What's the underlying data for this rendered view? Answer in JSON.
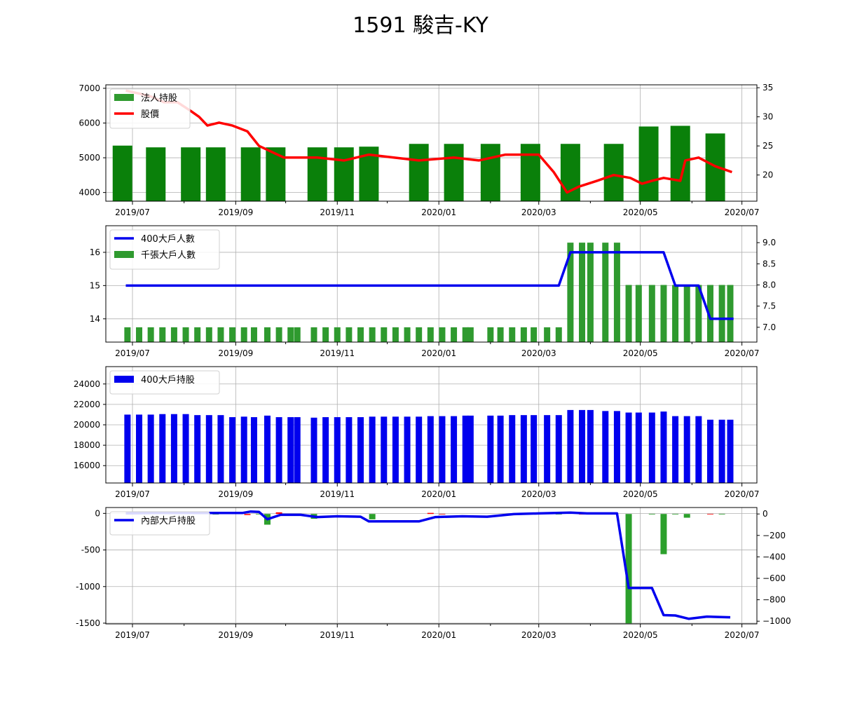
{
  "title": "1591 駿吉-KY",
  "x_tick_labels": [
    "2019/07",
    "2019/09",
    "2019/11",
    "2020/01",
    "2020/03",
    "2020/05",
    "2020/07"
  ],
  "chart_data": [
    {
      "type": "bar+line",
      "legend": [
        "法人持股",
        "股價"
      ],
      "y_left": {
        "range": [
          3750,
          7100
        ],
        "ticks": [
          4000,
          5000,
          6000,
          7000
        ],
        "tick_labels": [
          "4000",
          "5000",
          "6000",
          "7000"
        ]
      },
      "y_right": {
        "range": [
          15.5,
          35.5
        ],
        "ticks": [
          20,
          25,
          30,
          35
        ],
        "tick_labels": [
          "20",
          "25",
          "30",
          "35"
        ]
      },
      "bars": {
        "series_name": "法人持股",
        "x": [
          "2019-06-25",
          "2019-07-15",
          "2019-08-05",
          "2019-08-20",
          "2019-09-10",
          "2019-09-25",
          "2019-10-20",
          "2019-11-05",
          "2019-11-20",
          "2019-12-20",
          "2020-01-10",
          "2020-02-01",
          "2020-02-25",
          "2020-03-20",
          "2020-04-15",
          "2020-05-06",
          "2020-05-25",
          "2020-06-15"
        ],
        "values": [
          5350,
          5300,
          5300,
          5300,
          5300,
          5300,
          5300,
          5300,
          5320,
          5400,
          5400,
          5400,
          5400,
          5400,
          5400,
          5900,
          5920,
          5700
        ]
      },
      "line": {
        "series_name": "股價",
        "x": [
          "2019-06-27",
          "2019-07-05",
          "2019-07-12",
          "2019-07-20",
          "2019-07-28",
          "2019-08-05",
          "2019-08-10",
          "2019-08-15",
          "2019-08-22",
          "2019-08-30",
          "2019-09-08",
          "2019-09-15",
          "2019-09-30",
          "2019-10-20",
          "2019-11-05",
          "2019-11-20",
          "2019-12-05",
          "2019-12-20",
          "2020-01-10",
          "2020-01-25",
          "2020-02-10",
          "2020-03-01",
          "2020-03-10",
          "2020-03-18",
          "2020-03-25",
          "2020-04-05",
          "2020-04-15",
          "2020-04-25",
          "2020-05-02",
          "2020-05-08",
          "2020-05-15",
          "2020-05-25",
          "2020-05-28",
          "2020-06-05",
          "2020-06-15",
          "2020-06-20",
          "2020-06-25"
        ],
        "values": [
          34.5,
          34.0,
          33.5,
          32.5,
          32.5,
          31.0,
          30.0,
          28.5,
          29.0,
          28.5,
          27.5,
          25.0,
          23.0,
          23.0,
          22.5,
          23.5,
          23.0,
          22.5,
          23.0,
          22.5,
          23.5,
          23.5,
          20.5,
          17.0,
          18.0,
          19.0,
          20.0,
          19.5,
          18.5,
          19.0,
          19.5,
          19.0,
          22.5,
          23.0,
          21.5,
          21.0,
          20.5
        ]
      }
    },
    {
      "type": "line+bar",
      "legend": [
        "400大戶人數",
        "千張大戶人數"
      ],
      "y_left": {
        "range": [
          13.3,
          16.8
        ],
        "ticks": [
          14,
          15,
          16
        ],
        "tick_labels": [
          "14",
          "15",
          "16"
        ]
      },
      "y_right": {
        "range": [
          6.65,
          9.4
        ],
        "ticks": [
          7.0,
          7.5,
          8.0,
          8.5,
          9.0
        ],
        "tick_labels": [
          "7.0",
          "7.5",
          "8.0",
          "8.5",
          "9.0"
        ]
      },
      "line": {
        "series_name": "400大戶人數",
        "x": [
          "2019-06-27",
          "2020-03-13",
          "2020-03-20",
          "2020-05-15",
          "2020-05-22",
          "2020-06-05",
          "2020-06-12",
          "2020-06-26"
        ],
        "values": [
          15,
          15,
          16,
          16,
          15,
          15,
          14,
          14
        ]
      },
      "bars": {
        "series_name": "千張大戶人數",
        "x": [
          "2019-06-28",
          "2019-07-05",
          "2019-07-12",
          "2019-07-19",
          "2019-07-26",
          "2019-08-02",
          "2019-08-09",
          "2019-08-16",
          "2019-08-23",
          "2019-08-30",
          "2019-09-06",
          "2019-09-12",
          "2019-09-20",
          "2019-09-27",
          "2019-10-04",
          "2019-10-08",
          "2019-10-18",
          "2019-10-25",
          "2019-11-01",
          "2019-11-08",
          "2019-11-15",
          "2019-11-22",
          "2019-11-29",
          "2019-12-06",
          "2019-12-13",
          "2019-12-20",
          "2019-12-27",
          "2020-01-03",
          "2020-01-10",
          "2020-01-17",
          "2020-01-20",
          "2020-02-01",
          "2020-02-07",
          "2020-02-14",
          "2020-02-21",
          "2020-02-27",
          "2020-03-06",
          "2020-03-13",
          "2020-03-20",
          "2020-03-27",
          "2020-04-01",
          "2020-04-10",
          "2020-04-17",
          "2020-04-24",
          "2020-04-30",
          "2020-05-08",
          "2020-05-15",
          "2020-05-22",
          "2020-05-29",
          "2020-06-05",
          "2020-06-12",
          "2020-06-19",
          "2020-06-24"
        ],
        "values": [
          7,
          7,
          7,
          7,
          7,
          7,
          7,
          7,
          7,
          7,
          7,
          7,
          7,
          7,
          7,
          7,
          7,
          7,
          7,
          7,
          7,
          7,
          7,
          7,
          7,
          7,
          7,
          7,
          7,
          7,
          7,
          7,
          7,
          7,
          7,
          7,
          7,
          7,
          9,
          9,
          9,
          9,
          9,
          8,
          8,
          8,
          8,
          8,
          8,
          8,
          8,
          8,
          8
        ]
      }
    },
    {
      "type": "bar",
      "legend": [
        "400大戶持股"
      ],
      "y_left": {
        "range": [
          14300,
          25700
        ],
        "ticks": [
          16000,
          18000,
          20000,
          22000,
          24000
        ],
        "tick_labels": [
          "16000",
          "18000",
          "20000",
          "22000",
          "24000"
        ]
      },
      "bars": {
        "series_name": "400大戶持股",
        "x": [
          "2019-06-28",
          "2019-07-05",
          "2019-07-12",
          "2019-07-19",
          "2019-07-26",
          "2019-08-02",
          "2019-08-09",
          "2019-08-16",
          "2019-08-23",
          "2019-08-30",
          "2019-09-06",
          "2019-09-12",
          "2019-09-20",
          "2019-09-27",
          "2019-10-04",
          "2019-10-08",
          "2019-10-18",
          "2019-10-25",
          "2019-11-01",
          "2019-11-08",
          "2019-11-15",
          "2019-11-22",
          "2019-11-29",
          "2019-12-06",
          "2019-12-13",
          "2019-12-20",
          "2019-12-27",
          "2020-01-03",
          "2020-01-10",
          "2020-01-17",
          "2020-01-20",
          "2020-02-01",
          "2020-02-07",
          "2020-02-14",
          "2020-02-21",
          "2020-02-27",
          "2020-03-06",
          "2020-03-13",
          "2020-03-20",
          "2020-03-27",
          "2020-04-01",
          "2020-04-10",
          "2020-04-17",
          "2020-04-24",
          "2020-04-30",
          "2020-05-08",
          "2020-05-15",
          "2020-05-22",
          "2020-05-29",
          "2020-06-05",
          "2020-06-12",
          "2020-06-19",
          "2020-06-24"
        ],
        "values": [
          21000,
          21000,
          21000,
          21050,
          21050,
          21050,
          20950,
          20950,
          20950,
          20750,
          20800,
          20750,
          20900,
          20750,
          20750,
          20750,
          20700,
          20750,
          20750,
          20750,
          20750,
          20800,
          20800,
          20800,
          20800,
          20800,
          20850,
          20850,
          20850,
          20900,
          20900,
          20900,
          20900,
          20950,
          20950,
          20950,
          20950,
          20950,
          21450,
          21450,
          21450,
          21350,
          21350,
          21200,
          21200,
          21200,
          21300,
          20850,
          20850,
          20850,
          20500,
          20500,
          20500
        ]
      }
    },
    {
      "type": "line+bar",
      "legend": [
        "內部大戶持股"
      ],
      "y_left": {
        "range": [
          -1510,
          80
        ],
        "ticks": [
          -1500,
          -1000,
          -500,
          0
        ],
        "tick_labels": [
          "-1500",
          "-1000",
          "-500",
          "0"
        ]
      },
      "y_right": {
        "range": [
          -1025,
          60
        ],
        "ticks": [
          -1000,
          -800,
          -600,
          -400,
          -200,
          0
        ],
        "tick_labels": [
          "−1000",
          "−800",
          "−600",
          "−400",
          "−200",
          "0"
        ]
      },
      "line": {
        "series_name": "內部大戶持股",
        "x": [
          "2019-06-27",
          "2019-07-15",
          "2019-08-15",
          "2019-09-05",
          "2019-09-10",
          "2019-09-15",
          "2019-09-20",
          "2019-09-28",
          "2019-10-10",
          "2019-10-20",
          "2019-11-01",
          "2019-11-15",
          "2019-11-20",
          "2019-12-05",
          "2019-12-20",
          "2019-12-30",
          "2020-01-15",
          "2020-01-30",
          "2020-02-15",
          "2020-03-01",
          "2020-03-20",
          "2020-03-30",
          "2020-04-10",
          "2020-04-17",
          "2020-04-24",
          "2020-05-01",
          "2020-05-08",
          "2020-05-15",
          "2020-05-22",
          "2020-05-30",
          "2020-06-10",
          "2020-06-24"
        ],
        "values": [
          0,
          5,
          5,
          5,
          25,
          20,
          -80,
          -20,
          -20,
          -50,
          -40,
          -45,
          -110,
          -110,
          -110,
          -50,
          -40,
          -45,
          -10,
          0,
          10,
          0,
          0,
          0,
          -1020,
          -1020,
          -1020,
          -1390,
          -1395,
          -1440,
          -1410,
          -1420
        ]
      },
      "bars": {
        "x": [
          "2019-08-20",
          "2019-09-08",
          "2019-09-15",
          "2019-09-20",
          "2019-09-27",
          "2019-10-18",
          "2019-11-22",
          "2019-12-27",
          "2020-01-03",
          "2020-02-14",
          "2020-02-21",
          "2020-03-13",
          "2020-03-27",
          "2020-04-10",
          "2020-04-24",
          "2020-05-08",
          "2020-05-15",
          "2020-05-22",
          "2020-05-29",
          "2020-06-12",
          "2020-06-19"
        ],
        "values": [
          -5,
          -10,
          -5,
          -100,
          15,
          -45,
          -50,
          10,
          -5,
          -5,
          -5,
          -5,
          -5,
          -5,
          -1020,
          -5,
          -375,
          -5,
          -35,
          -5,
          -5
        ],
        "colors": [
          "#2ca02c",
          "#ff0000",
          "#2ca02c",
          "#2ca02c",
          "#ff0000",
          "#2ca02c",
          "#2ca02c",
          "#ff0000",
          "#ff0000",
          "#ff0000",
          "#ff0000",
          "#2ca02c",
          "#ff0000",
          "#2ca02c",
          "#2ca02c",
          "#2ca02c",
          "#2ca02c",
          "#2ca02c",
          "#2ca02c",
          "#ff0000",
          "#2ca02c"
        ]
      }
    }
  ]
}
